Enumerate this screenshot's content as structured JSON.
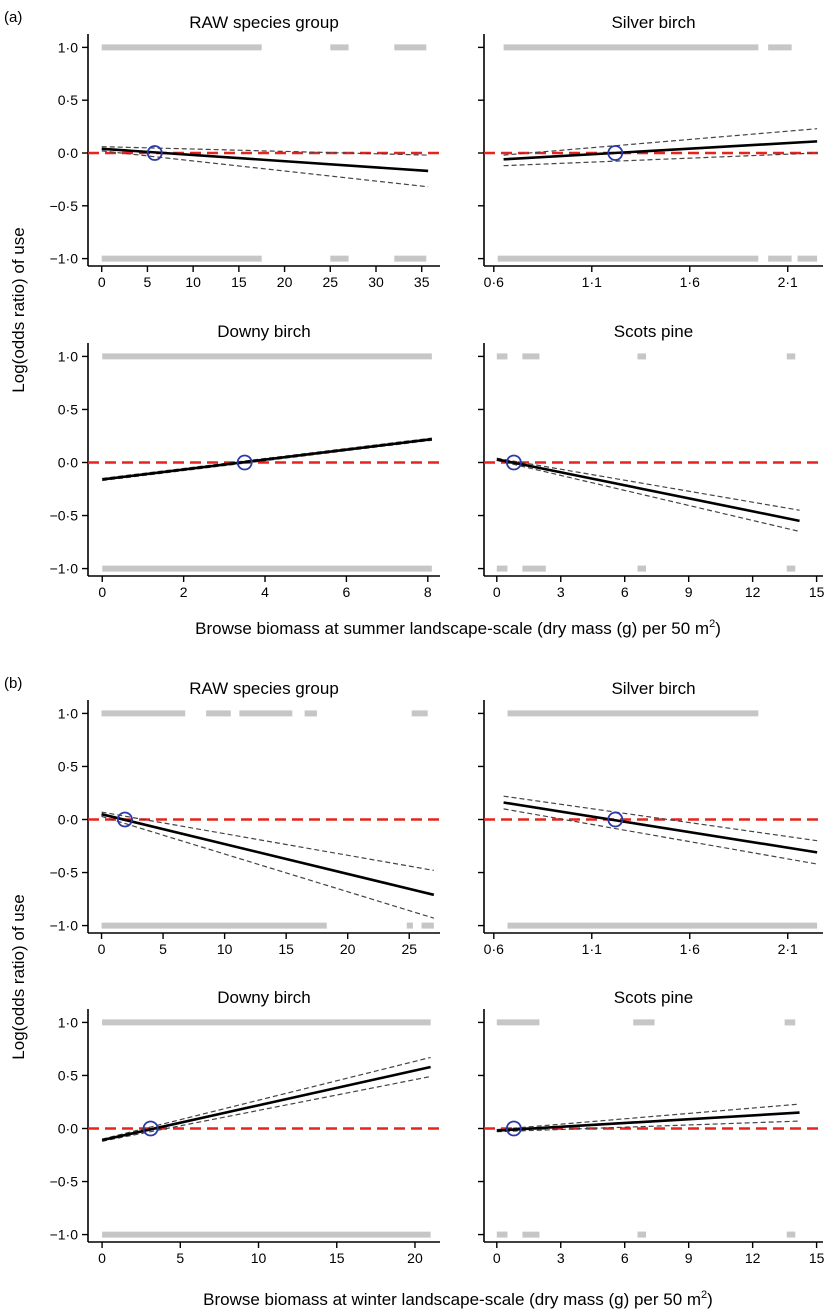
{
  "figure": {
    "shared_ylabel": "Log(odds ratio) of use",
    "y_ticks": [
      1.0,
      0.5,
      0.0,
      -0.5,
      -1.0
    ],
    "y_tick_labels": [
      "1·0",
      "0·5",
      "0·0",
      "−0·5",
      "−1·0"
    ],
    "colors": {
      "fit_line": "#000000",
      "ci_line": "#444444",
      "reference_line": "#e8231f",
      "reference_circle": "#2b3aa8",
      "observation_points": "#c6c6c6"
    }
  },
  "sections": [
    {
      "letter": "(a)",
      "xlabel": "Browse biomass at summer landscape-scale (dry mass (g) per 50 m",
      "xlabel_sup": "2",
      "xlabel_end": ")"
    },
    {
      "letter": "(b)",
      "xlabel": "Browse biomass at winter landscape-scale (dry mass (g) per 50 m",
      "xlabel_sup": "2",
      "xlabel_end": ")"
    }
  ],
  "chart_data": [
    {
      "type": "line",
      "section": "(a)",
      "title": "RAW species group",
      "xlim": [
        -1.5,
        37
      ],
      "ylim": [
        -1.07,
        1.07
      ],
      "x_ticks": [
        0,
        5,
        10,
        15,
        20,
        25,
        30,
        35
      ],
      "x_tick_labels": [
        "0",
        "5",
        "10",
        "15",
        "20",
        "25",
        "30",
        "35"
      ],
      "fit": {
        "x": [
          0,
          35.7
        ],
        "y": [
          0.04,
          -0.17
        ]
      },
      "ci_upper": {
        "x": [
          0,
          35.7
        ],
        "y": [
          0.06,
          -0.02
        ]
      },
      "ci_lower": {
        "x": [
          0,
          35.7
        ],
        "y": [
          0.02,
          -0.32
        ]
      },
      "reference_y": 0,
      "marker": {
        "x": 5.8,
        "y": 0
      },
      "rug_top": [
        [
          0,
          17.5
        ],
        [
          25,
          27
        ],
        [
          32,
          35.5
        ]
      ],
      "rug_bottom": [
        [
          0,
          17.5
        ],
        [
          25,
          27
        ],
        [
          32,
          35.5
        ]
      ]
    },
    {
      "type": "line",
      "section": "(a)",
      "title": "Silver birch",
      "xlim": [
        0.55,
        2.28
      ],
      "ylim": [
        -1.07,
        1.07
      ],
      "x_ticks": [
        0.6,
        1.1,
        1.6,
        2.1
      ],
      "x_tick_labels": [
        "0·6",
        "1·1",
        "1·6",
        "2·1"
      ],
      "fit": {
        "x": [
          0.65,
          2.25
        ],
        "y": [
          -0.06,
          0.11
        ]
      },
      "ci_upper": {
        "x": [
          0.65,
          2.25
        ],
        "y": [
          -0.02,
          0.23
        ]
      },
      "ci_lower": {
        "x": [
          0.65,
          2.25
        ],
        "y": [
          -0.12,
          0.0
        ]
      },
      "reference_y": 0,
      "marker": {
        "x": 1.22,
        "y": 0
      },
      "rug_top": [
        [
          0.65,
          1.95
        ],
        [
          2.0,
          2.12
        ]
      ],
      "rug_bottom": [
        [
          0.62,
          1.95
        ],
        [
          2.0,
          2.12
        ],
        [
          2.15,
          2.25
        ]
      ]
    },
    {
      "type": "line",
      "section": "(a)",
      "title": "Downy birch",
      "xlim": [
        -0.35,
        8.3
      ],
      "ylim": [
        -1.07,
        1.07
      ],
      "x_ticks": [
        0,
        2,
        4,
        6,
        8
      ],
      "x_tick_labels": [
        "0",
        "2",
        "4",
        "6",
        "8"
      ],
      "fit": {
        "x": [
          0,
          8.1
        ],
        "y": [
          -0.16,
          0.22
        ]
      },
      "ci_upper": {
        "x": [
          0,
          8.1
        ],
        "y": [
          -0.15,
          0.23
        ]
      },
      "ci_lower": {
        "x": [
          0,
          8.1
        ],
        "y": [
          -0.17,
          0.21
        ]
      },
      "reference_y": 0,
      "marker": {
        "x": 3.5,
        "y": 0
      },
      "rug_top": [
        [
          0,
          8.1
        ]
      ],
      "rug_bottom": [
        [
          0,
          8.1
        ]
      ]
    },
    {
      "type": "line",
      "section": "(a)",
      "title": "Scots pine",
      "xlim": [
        -0.6,
        15.3
      ],
      "ylim": [
        -1.07,
        1.07
      ],
      "x_ticks": [
        0,
        3,
        6,
        9,
        12,
        15
      ],
      "x_tick_labels": [
        "0",
        "3",
        "6",
        "9",
        "12",
        "15"
      ],
      "fit": {
        "x": [
          0,
          14.2
        ],
        "y": [
          0.03,
          -0.55
        ]
      },
      "ci_upper": {
        "x": [
          0,
          14.2
        ],
        "y": [
          0.04,
          -0.45
        ]
      },
      "ci_lower": {
        "x": [
          0,
          14.2
        ],
        "y": [
          0.02,
          -0.65
        ]
      },
      "reference_y": 0,
      "marker": {
        "x": 0.8,
        "y": 0
      },
      "rug_top": [
        [
          0,
          0.5
        ],
        [
          1.2,
          2.0
        ],
        [
          6.6,
          7.0
        ],
        [
          13.6,
          14.0
        ]
      ],
      "rug_bottom": [
        [
          0,
          0.5
        ],
        [
          1.2,
          2.3
        ],
        [
          6.6,
          7.0
        ],
        [
          13.6,
          14.0
        ]
      ]
    },
    {
      "type": "line",
      "section": "(b)",
      "title": "RAW species group",
      "xlim": [
        -1.1,
        27.5
      ],
      "ylim": [
        -1.07,
        1.07
      ],
      "x_ticks": [
        0,
        5,
        10,
        15,
        20,
        25
      ],
      "x_tick_labels": [
        "0",
        "5",
        "10",
        "15",
        "20",
        "25"
      ],
      "fit": {
        "x": [
          0,
          27
        ],
        "y": [
          0.05,
          -0.71
        ]
      },
      "ci_upper": {
        "x": [
          0,
          27
        ],
        "y": [
          0.07,
          -0.48
        ]
      },
      "ci_lower": {
        "x": [
          0,
          27
        ],
        "y": [
          0.03,
          -0.93
        ]
      },
      "reference_y": 0,
      "marker": {
        "x": 1.9,
        "y": 0
      },
      "rug_top": [
        [
          0,
          6.8
        ],
        [
          8.5,
          10.5
        ],
        [
          11.2,
          15.5
        ],
        [
          16.5,
          17.5
        ],
        [
          25.2,
          26.5
        ]
      ],
      "rug_bottom": [
        [
          0,
          18.3
        ],
        [
          24.8,
          25.3
        ],
        [
          26.0,
          27.0
        ]
      ]
    },
    {
      "type": "line",
      "section": "(b)",
      "title": "Silver birch",
      "xlim": [
        0.55,
        2.28
      ],
      "ylim": [
        -1.07,
        1.07
      ],
      "x_ticks": [
        0.6,
        1.1,
        1.6,
        2.1
      ],
      "x_tick_labels": [
        "0·6",
        "1·1",
        "1·6",
        "2·1"
      ],
      "fit": {
        "x": [
          0.65,
          2.25
        ],
        "y": [
          0.16,
          -0.31
        ]
      },
      "ci_upper": {
        "x": [
          0.65,
          2.25
        ],
        "y": [
          0.22,
          -0.2
        ]
      },
      "ci_lower": {
        "x": [
          0.65,
          2.25
        ],
        "y": [
          0.1,
          -0.42
        ]
      },
      "reference_y": 0,
      "marker": {
        "x": 1.22,
        "y": 0
      },
      "rug_top": [
        [
          0.67,
          1.95
        ]
      ],
      "rug_bottom": [
        [
          0.67,
          2.25
        ]
      ]
    },
    {
      "type": "line",
      "section": "(b)",
      "title": "Downy birch",
      "xlim": [
        -0.9,
        21.6
      ],
      "ylim": [
        -1.07,
        1.07
      ],
      "x_ticks": [
        0,
        5,
        10,
        15,
        20
      ],
      "x_tick_labels": [
        "0",
        "5",
        "10",
        "15",
        "20"
      ],
      "fit": {
        "x": [
          0,
          21
        ],
        "y": [
          -0.11,
          0.58
        ]
      },
      "ci_upper": {
        "x": [
          0,
          21
        ],
        "y": [
          -0.1,
          0.67
        ]
      },
      "ci_lower": {
        "x": [
          0,
          21
        ],
        "y": [
          -0.12,
          0.49
        ]
      },
      "reference_y": 0,
      "marker": {
        "x": 3.1,
        "y": 0
      },
      "rug_top": [
        [
          0,
          21
        ]
      ],
      "rug_bottom": [
        [
          0,
          21
        ]
      ]
    },
    {
      "type": "line",
      "section": "(b)",
      "title": "Scots pine",
      "xlim": [
        -0.6,
        15.3
      ],
      "ylim": [
        -1.07,
        1.07
      ],
      "x_ticks": [
        0,
        3,
        6,
        9,
        12,
        15
      ],
      "x_tick_labels": [
        "0",
        "3",
        "6",
        "9",
        "12",
        "15"
      ],
      "fit": {
        "x": [
          0,
          14.2
        ],
        "y": [
          -0.02,
          0.15
        ]
      },
      "ci_upper": {
        "x": [
          0,
          14.2
        ],
        "y": [
          -0.01,
          0.23
        ]
      },
      "ci_lower": {
        "x": [
          0,
          14.2
        ],
        "y": [
          -0.03,
          0.07
        ]
      },
      "reference_y": 0,
      "marker": {
        "x": 0.8,
        "y": 0
      },
      "rug_top": [
        [
          0,
          2.0
        ],
        [
          6.4,
          7.4
        ],
        [
          13.5,
          14.0
        ]
      ],
      "rug_bottom": [
        [
          0,
          0.5
        ],
        [
          1.2,
          2.0
        ],
        [
          6.6,
          7.0
        ],
        [
          13.6,
          14.0
        ]
      ]
    }
  ]
}
